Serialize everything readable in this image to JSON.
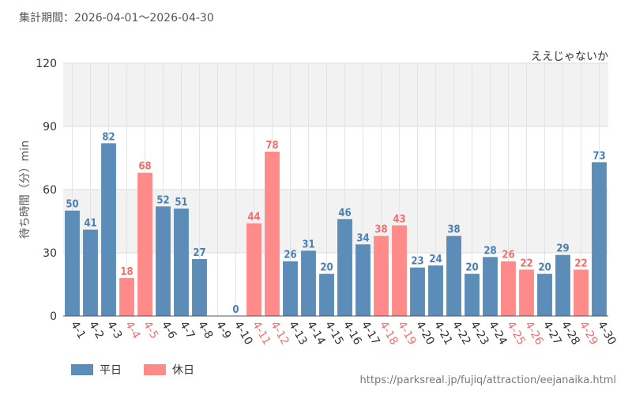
{
  "period_label": "集計期間：2026-04-01～2026-04-30",
  "source_url": "https://parksreal.jp/fujiq/attraction/eejanaika.html",
  "chart_data": {
    "type": "bar",
    "title": "ええじゃないか",
    "ylabel": "待ち時間（分）min",
    "xlabel": "",
    "ylim": [
      0,
      120
    ],
    "yticks": [
      0,
      30,
      60,
      90,
      120
    ],
    "grid": true,
    "colors": {
      "weekday": "#5b8db8",
      "holiday": "#ff8a8a",
      "weekday_label": "#4a7fb0",
      "holiday_label": "#f07070"
    },
    "legend": [
      {
        "key": "weekday",
        "label": "平日"
      },
      {
        "key": "holiday",
        "label": "休日"
      }
    ],
    "categories": [
      "4-1",
      "4-2",
      "4-3",
      "4-4",
      "4-5",
      "4-6",
      "4-7",
      "4-8",
      "4-9",
      "4-10",
      "4-11",
      "4-12",
      "4-13",
      "4-14",
      "4-15",
      "4-16",
      "4-17",
      "4-18",
      "4-19",
      "4-20",
      "4-21",
      "4-22",
      "4-23",
      "4-24",
      "4-25",
      "4-26",
      "4-27",
      "4-28",
      "4-29",
      "4-30"
    ],
    "values": [
      50,
      41,
      82,
      18,
      68,
      52,
      51,
      27,
      null,
      0,
      44,
      78,
      26,
      31,
      20,
      46,
      34,
      38,
      43,
      23,
      24,
      38,
      20,
      28,
      26,
      22,
      20,
      29,
      22,
      73
    ],
    "day_types": [
      "weekday",
      "weekday",
      "weekday",
      "holiday",
      "holiday",
      "weekday",
      "weekday",
      "weekday",
      "weekday",
      "weekday",
      "holiday",
      "holiday",
      "weekday",
      "weekday",
      "weekday",
      "weekday",
      "weekday",
      "holiday",
      "holiday",
      "weekday",
      "weekday",
      "weekday",
      "weekday",
      "weekday",
      "holiday",
      "holiday",
      "weekday",
      "weekday",
      "holiday",
      "weekday"
    ]
  }
}
